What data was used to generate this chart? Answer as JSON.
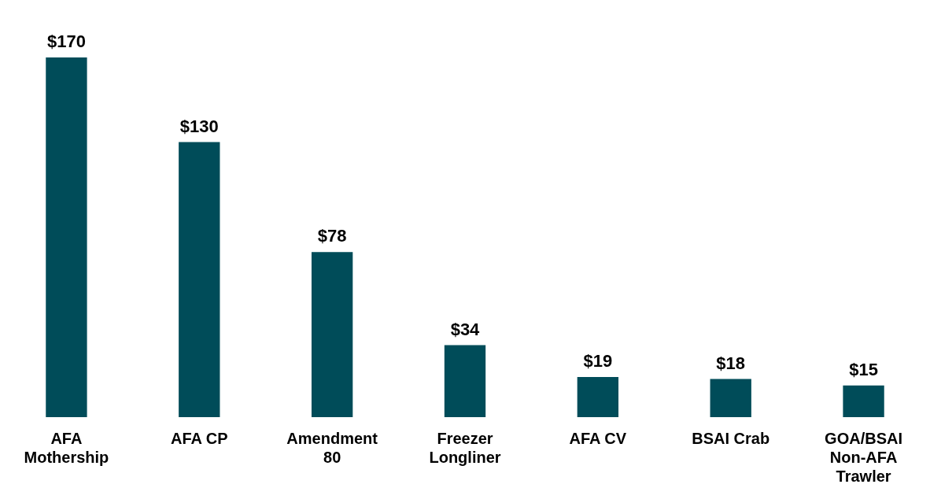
{
  "chart_data": {
    "type": "bar",
    "categories": [
      "AFA Mothership",
      "AFA CP",
      "Amendment 80",
      "Freezer Longliner",
      "AFA CV",
      "BSAI Crab",
      "GOA/BSAI Non-AFA Trawler"
    ],
    "values": [
      170,
      130,
      78,
      34,
      19,
      18,
      15
    ],
    "value_labels": [
      "$170",
      "$130",
      "$78",
      "$34",
      "$19",
      "$18",
      "$15"
    ],
    "color": "#004c59",
    "grid": false,
    "legend": false,
    "tick_labels": "x"
  }
}
